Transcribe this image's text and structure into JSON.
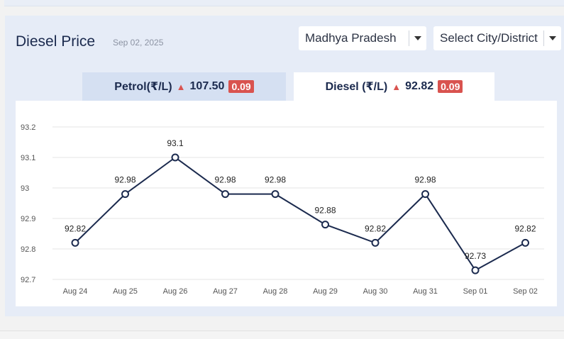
{
  "header": {
    "title": "Diesel Price",
    "date": "Sep 02, 2025"
  },
  "filters": {
    "state": "Madhya Pradesh",
    "city_placeholder": "Select City/District"
  },
  "tabs": {
    "petrol": {
      "label": "Petrol(₹/L)",
      "price": "107.50",
      "change": "0.09"
    },
    "diesel": {
      "label": "Diesel (₹/L)",
      "price": "92.82",
      "change": "0.09"
    }
  },
  "colors": {
    "line": "#1b2a4e",
    "grid": "#e5e5e5",
    "up": "#d9534f"
  },
  "chart_data": {
    "type": "line",
    "title": "",
    "xlabel": "",
    "ylabel": "",
    "categories": [
      "Aug 24",
      "Aug 25",
      "Aug 26",
      "Aug 27",
      "Aug 28",
      "Aug 29",
      "Aug 30",
      "Aug 31",
      "Sep 01",
      "Sep 02"
    ],
    "values": [
      92.82,
      92.98,
      93.1,
      92.98,
      92.98,
      92.88,
      92.82,
      92.98,
      92.73,
      92.82
    ],
    "labels": [
      "92.82",
      "92.98",
      "93.1",
      "92.98",
      "92.98",
      "92.88",
      "92.82",
      "92.98",
      "92.73",
      "92.82"
    ],
    "yticks": [
      92.7,
      92.8,
      92.9,
      93,
      93.1,
      93.2
    ],
    "ytick_labels": [
      "92.7",
      "92.8",
      "92.9",
      "93",
      "93.1",
      "93.2"
    ],
    "ylim": [
      92.7,
      93.2
    ],
    "grid": true
  }
}
